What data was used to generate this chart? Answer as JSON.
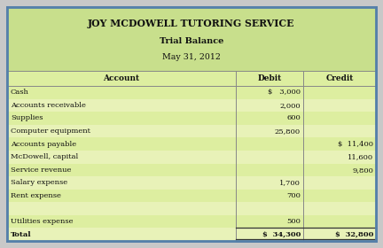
{
  "title_line1": "JOY MCDOWELL TUTORING SERVICE",
  "title_line2": "Trial Balance",
  "title_line3": "May 31, 2012",
  "header_bg": "#c8df8c",
  "table_row_bg": "#ddeea0",
  "border_color": "#888888",
  "outer_border_color": "#5580aa",
  "outer_bg": "#c8c8c8",
  "rows": [
    {
      "account": "Cash",
      "debit": "$   3,000",
      "credit": ""
    },
    {
      "account": "Accounts receivable",
      "debit": "2,000",
      "credit": ""
    },
    {
      "account": "Supplies",
      "debit": "600",
      "credit": ""
    },
    {
      "account": "Computer equipment",
      "debit": "25,800",
      "credit": ""
    },
    {
      "account": "Accounts payable",
      "debit": "",
      "credit": "$  11,400"
    },
    {
      "account": "McDowell, capital",
      "debit": "",
      "credit": "11,600"
    },
    {
      "account": "Service revenue",
      "debit": "",
      "credit": "9,800"
    },
    {
      "account": "Salary expense",
      "debit": "1,700",
      "credit": ""
    },
    {
      "account": "Rent expense",
      "debit": "700",
      "credit": ""
    },
    {
      "account": "",
      "debit": "",
      "credit": ""
    },
    {
      "account": "Utilities expense",
      "debit": "500",
      "credit": ""
    },
    {
      "account": "Total",
      "debit": "$  34,300",
      "credit": "$  32,800"
    }
  ],
  "total_row_index": 11,
  "blank_row_index": 9,
  "figsize": [
    4.32,
    2.8
  ],
  "dpi": 100
}
